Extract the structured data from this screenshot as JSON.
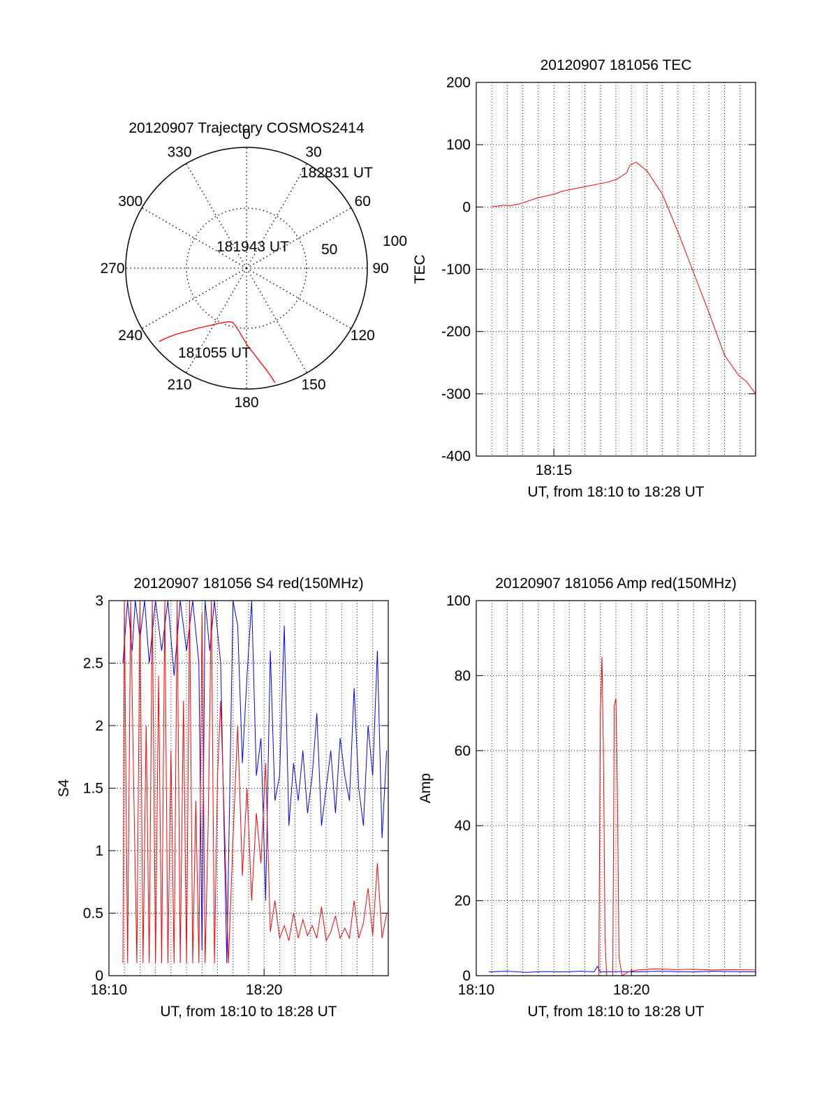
{
  "chart_data": [
    {
      "type": "polar",
      "title": "20120907 Trajectory COSMOS2414",
      "azimuth_labels": [
        "0",
        "30",
        "60",
        "90",
        "120",
        "150",
        "180",
        "210",
        "240",
        "270",
        "300",
        "330"
      ],
      "elevation_labels": [
        "50",
        "100"
      ],
      "start_label": "181055 UT",
      "mid_label": "181943 UT",
      "end_label": "182831 UT",
      "trajectory": {
        "azimuth_deg": [
          230,
          229.5,
          228.5,
          227,
          225,
          222,
          219,
          215,
          211,
          207,
          203,
          199,
          195,
          191,
          187,
          183,
          179,
          175,
          172,
          169,
          167,
          166
        ],
        "zenith_deg": [
          85,
          82,
          77.5,
          72.5,
          67.8,
          62.5,
          57.5,
          53,
          49.3,
          46.2,
          44,
          42.2,
          41.5,
          43.5,
          47,
          52,
          58,
          64,
          70,
          77,
          83.5,
          88
        ]
      },
      "color": "#ff0000"
    },
    {
      "type": "line",
      "title": "20120907 181056 TEC",
      "xlabel": "UT, from 18:10 to 18:28 UT",
      "ylabel": "TEC",
      "xlim": [
        18.1667,
        18.4667
      ],
      "ylim": [
        -400,
        200
      ],
      "yticks": [
        "200",
        "100",
        "0",
        "-100",
        "-200",
        "-300",
        "-400"
      ],
      "xtick_labels": [
        "18:15"
      ],
      "series": [
        {
          "color": "#ff0000",
          "x": [
            18.1833,
            18.1967,
            18.2033,
            18.2133,
            18.2333,
            18.2517,
            18.2583,
            18.2817,
            18.3083,
            18.3183,
            18.3283,
            18.3317,
            18.3383,
            18.35,
            18.3667,
            18.3833,
            18.4,
            18.4167,
            18.4333,
            18.4483,
            18.4567,
            18.4667
          ],
          "y": [
            0,
            3,
            2,
            5,
            15,
            21,
            25,
            32,
            40,
            45,
            55,
            67,
            72,
            58,
            20,
            -40,
            -105,
            -170,
            -238,
            -270,
            -280,
            -300
          ]
        }
      ]
    },
    {
      "type": "line",
      "title": "20120907 181056 S4 red(150MHz)",
      "xlabel": "UT, from 18:10 to 18:28 UT",
      "ylabel": "S4",
      "xlim": [
        18.1667,
        18.4667
      ],
      "ylim": [
        0,
        3
      ],
      "yticks": [
        "3",
        "2.5",
        "2",
        "1.5",
        "1",
        "0.5",
        "0"
      ],
      "xtick_labels": [
        "18:10",
        "18:20"
      ],
      "series": [
        {
          "color": "#0000ff",
          "x": [
            18.1817,
            18.1867,
            18.1917,
            18.195,
            18.2,
            18.205,
            18.21,
            18.2167,
            18.2233,
            18.23,
            18.2367,
            18.2433,
            18.25,
            18.2567,
            18.2633,
            18.2667,
            18.27,
            18.275,
            18.28,
            18.2867,
            18.2933,
            18.3,
            18.305,
            18.31,
            18.315,
            18.32,
            18.325,
            18.33,
            18.335,
            18.34,
            18.345,
            18.35,
            18.355,
            18.36,
            18.365,
            18.37,
            18.375,
            18.38,
            18.385,
            18.39,
            18.395,
            18.4,
            18.405,
            18.41,
            18.415,
            18.42,
            18.425,
            18.43,
            18.435,
            18.44,
            18.445,
            18.45,
            18.455,
            18.46,
            18.465
          ],
          "y": [
            2.5,
            3,
            2.6,
            3,
            2.7,
            3,
            2.5,
            3,
            2.6,
            3,
            2.4,
            3,
            2.6,
            3,
            2.5,
            0.2,
            3,
            2.6,
            3,
            2.5,
            0.1,
            3,
            2.8,
            1.7,
            2.4,
            3,
            1.6,
            1.9,
            0.6,
            2.6,
            1.4,
            1.6,
            2.8,
            1.2,
            1.7,
            1.4,
            1.8,
            1.3,
            1.6,
            2.1,
            1.2,
            1.5,
            1.8,
            1.3,
            1.9,
            1.6,
            1.4,
            2.3,
            1.5,
            1.2,
            2.0,
            1.6,
            2.6,
            1.1,
            1.8
          ]
        },
        {
          "color": "#ff0000",
          "x": [
            18.1817,
            18.1833,
            18.1867,
            18.19,
            18.1933,
            18.1967,
            18.2,
            18.2033,
            18.2067,
            18.21,
            18.2133,
            18.2167,
            18.22,
            18.2233,
            18.2267,
            18.23,
            18.2333,
            18.2367,
            18.24,
            18.2433,
            18.2467,
            18.25,
            18.2533,
            18.2567,
            18.26,
            18.2633,
            18.2667,
            18.27,
            18.2733,
            18.2767,
            18.28,
            18.2833,
            18.2867,
            18.29,
            18.295,
            18.3,
            18.305,
            18.31,
            18.315,
            18.32,
            18.325,
            18.33,
            18.335,
            18.34,
            18.345,
            18.35,
            18.355,
            18.36,
            18.365,
            18.37,
            18.375,
            18.38,
            18.385,
            18.39,
            18.395,
            18.4,
            18.405,
            18.41,
            18.415,
            18.42,
            18.425,
            18.43,
            18.435,
            18.44,
            18.445,
            18.45,
            18.455,
            18.46,
            18.465
          ],
          "y": [
            0.1,
            3,
            0.1,
            3,
            1.5,
            0.1,
            3,
            0.1,
            2.0,
            0.1,
            3,
            0.1,
            2.4,
            0.1,
            3,
            0.1,
            1.8,
            0.1,
            3,
            0.1,
            2.2,
            0.1,
            3,
            0.1,
            1.4,
            0.1,
            2.9,
            0.1,
            1.2,
            3,
            0.1,
            1.6,
            2.2,
            1.4,
            0.1,
            1.1,
            2.0,
            0.8,
            1.5,
            0.6,
            1.3,
            0.9,
            1.7,
            0.35,
            0.6,
            0.3,
            0.4,
            0.28,
            0.5,
            0.3,
            0.45,
            0.32,
            0.4,
            0.3,
            0.55,
            0.28,
            0.35,
            0.48,
            0.3,
            0.38,
            0.3,
            0.6,
            0.3,
            0.42,
            0.7,
            0.32,
            0.9,
            0.3,
            0.5
          ]
        }
      ]
    },
    {
      "type": "line",
      "title": "20120907 181056 Amp red(150MHz)",
      "xlabel": "UT, from 18:10 to 18:28 UT",
      "ylabel": "Amp",
      "xlim": [
        18.1667,
        18.4667
      ],
      "ylim": [
        0,
        100
      ],
      "yticks": [
        "100",
        "80",
        "60",
        "40",
        "20",
        "0"
      ],
      "xtick_labels": [
        "18:10",
        "18:20"
      ],
      "series": [
        {
          "color": "#0000ff",
          "x": [
            18.18,
            18.2,
            18.22,
            18.24,
            18.26,
            18.28,
            18.2933,
            18.2967,
            18.3,
            18.32,
            18.34,
            18.36,
            18.38,
            18.4,
            18.42,
            18.44,
            18.4667
          ],
          "y": [
            1,
            1.2,
            0.9,
            1.1,
            1.0,
            1.2,
            1.0,
            2.5,
            1.0,
            1.1,
            1.0,
            1.2,
            1.1,
            1.0,
            1.2,
            1.1,
            1.0
          ]
        },
        {
          "color": "#ff0000",
          "x": [
            18.2983,
            18.3,
            18.3017,
            18.3033,
            18.305,
            18.3067,
            18.31,
            18.3133,
            18.315,
            18.3167,
            18.3183,
            18.32,
            18.3233,
            18.33,
            18.34,
            18.36,
            18.38,
            18.4,
            18.42,
            18.44,
            18.4667
          ],
          "y": [
            0,
            70,
            85,
            60,
            10,
            0,
            0,
            0,
            72,
            74,
            50,
            5,
            0,
            1,
            1.5,
            1.8,
            1.6,
            1.7,
            1.5,
            1.6,
            1.5
          ]
        }
      ]
    }
  ]
}
